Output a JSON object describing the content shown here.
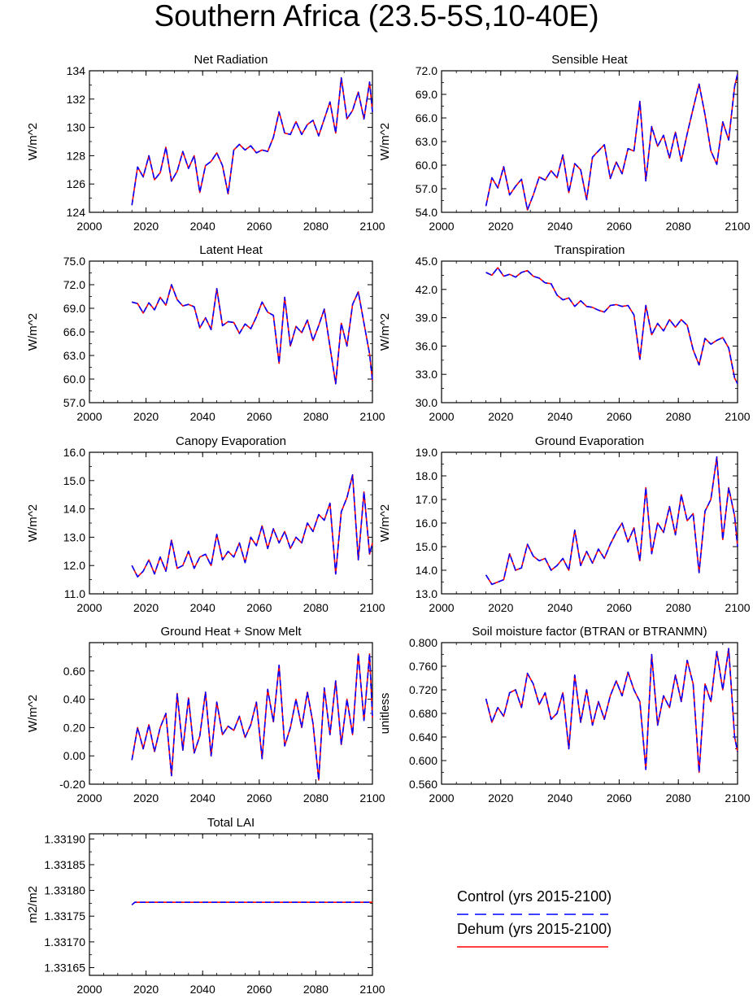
{
  "figure": {
    "title": "Southern Africa (23.5-5S,10-40E)"
  },
  "legend": {
    "placement": "bottom-right",
    "entries": [
      {
        "label": "Control (yrs 2015-2100)",
        "color": "#0000ff",
        "style": "dashed"
      },
      {
        "label": "Dehum (yrs 2015-2100)",
        "color": "#ff0000",
        "style": "solid"
      }
    ]
  },
  "chart_data": [
    {
      "type": "line",
      "title": "Net Radiation",
      "ylabel": "W/m^2",
      "xlim": [
        2000,
        2100
      ],
      "xticks": [
        "2000",
        "2020",
        "2040",
        "2060",
        "2080",
        "2100"
      ],
      "ylim": [
        124,
        134
      ],
      "yticks": [
        "124",
        "126",
        "128",
        "130",
        "132",
        "134"
      ],
      "x": [
        2015,
        2017,
        2019,
        2021,
        2023,
        2025,
        2027,
        2029,
        2031,
        2033,
        2035,
        2037,
        2039,
        2041,
        2043,
        2045,
        2047,
        2049,
        2051,
        2053,
        2055,
        2057,
        2059,
        2061,
        2063,
        2065,
        2067,
        2069,
        2071,
        2073,
        2075,
        2077,
        2079,
        2081,
        2083,
        2085,
        2087,
        2089,
        2091,
        2093,
        2095,
        2097,
        2099,
        2100
      ],
      "values": [
        124.5,
        127.2,
        126.5,
        128.0,
        126.3,
        126.8,
        128.6,
        126.2,
        126.9,
        128.3,
        127.1,
        128.0,
        125.4,
        127.3,
        127.6,
        128.2,
        127.3,
        125.3,
        128.4,
        128.8,
        128.4,
        128.7,
        128.2,
        128.4,
        128.3,
        129.3,
        131.1,
        129.6,
        129.5,
        130.4,
        129.5,
        130.2,
        130.5,
        129.4,
        130.6,
        131.8,
        129.6,
        133.5,
        130.6,
        131.2,
        132.5,
        130.6,
        133.2,
        131.1
      ],
      "series": [
        {
          "name": "Control (yrs 2015-2100)",
          "color": "#0000ff"
        },
        {
          "name": "Dehum (yrs 2015-2100)",
          "color": "#ff0000"
        }
      ]
    },
    {
      "type": "line",
      "title": "Sensible Heat",
      "ylabel": "W/m^2",
      "xlim": [
        2000,
        2100
      ],
      "xticks": [
        "2000",
        "2020",
        "2040",
        "2060",
        "2080",
        "2100"
      ],
      "ylim": [
        54,
        72
      ],
      "yticks": [
        "54.0",
        "57.0",
        "60.0",
        "63.0",
        "66.0",
        "69.0",
        "72.0"
      ],
      "x": [
        2015,
        2017,
        2019,
        2021,
        2023,
        2025,
        2027,
        2029,
        2031,
        2033,
        2035,
        2037,
        2039,
        2041,
        2043,
        2045,
        2047,
        2049,
        2051,
        2053,
        2055,
        2057,
        2059,
        2061,
        2063,
        2065,
        2067,
        2069,
        2071,
        2073,
        2075,
        2077,
        2079,
        2081,
        2083,
        2085,
        2087,
        2089,
        2091,
        2093,
        2095,
        2097,
        2099,
        2100
      ],
      "values": [
        54.8,
        58.4,
        57.1,
        59.8,
        56.2,
        57.3,
        58.2,
        54.3,
        56.2,
        58.5,
        58.1,
        59.3,
        58.4,
        61.3,
        56.5,
        60.2,
        59.4,
        55.6,
        61.0,
        61.8,
        62.6,
        58.3,
        60.4,
        58.9,
        62.1,
        61.8,
        68.1,
        58.0,
        64.9,
        62.4,
        63.8,
        60.9,
        64.2,
        60.5,
        64.0,
        67.2,
        70.3,
        66.4,
        61.8,
        60.1,
        65.5,
        63.2,
        70.0,
        71.6
      ],
      "series": [
        {
          "name": "Control (yrs 2015-2100)",
          "color": "#0000ff"
        },
        {
          "name": "Dehum (yrs 2015-2100)",
          "color": "#ff0000"
        }
      ]
    },
    {
      "type": "line",
      "title": "Latent Heat",
      "ylabel": "W/m^2",
      "xlim": [
        2000,
        2100
      ],
      "xticks": [
        "2000",
        "2020",
        "2040",
        "2060",
        "2080",
        "2100"
      ],
      "ylim": [
        57,
        75
      ],
      "yticks": [
        "57.0",
        "60.0",
        "63.0",
        "66.0",
        "69.0",
        "72.0",
        "75.0"
      ],
      "x": [
        2015,
        2017,
        2019,
        2021,
        2023,
        2025,
        2027,
        2029,
        2031,
        2033,
        2035,
        2037,
        2039,
        2041,
        2043,
        2045,
        2047,
        2049,
        2051,
        2053,
        2055,
        2057,
        2059,
        2061,
        2063,
        2065,
        2067,
        2069,
        2071,
        2073,
        2075,
        2077,
        2079,
        2081,
        2083,
        2085,
        2087,
        2089,
        2091,
        2093,
        2095,
        2097,
        2099,
        2100
      ],
      "values": [
        69.8,
        69.6,
        68.4,
        69.7,
        68.8,
        70.4,
        69.4,
        72.0,
        70.1,
        69.3,
        69.5,
        69.2,
        66.5,
        67.8,
        66.3,
        71.5,
        66.8,
        67.3,
        67.2,
        65.8,
        67.0,
        66.4,
        67.9,
        69.8,
        68.5,
        68.1,
        62.0,
        70.4,
        64.2,
        66.7,
        65.9,
        67.5,
        64.9,
        66.8,
        68.9,
        64.1,
        59.4,
        67.1,
        64.2,
        69.5,
        71.1,
        67.1,
        63.2,
        59.8
      ],
      "series": [
        {
          "name": "Control (yrs 2015-2100)",
          "color": "#0000ff"
        },
        {
          "name": "Dehum (yrs 2015-2100)",
          "color": "#ff0000"
        }
      ]
    },
    {
      "type": "line",
      "title": "Transpiration",
      "ylabel": "W/m^2",
      "xlim": [
        2000,
        2100
      ],
      "xticks": [
        "2000",
        "2020",
        "2040",
        "2060",
        "2080",
        "2100"
      ],
      "ylim": [
        30,
        45
      ],
      "yticks": [
        "30.0",
        "33.0",
        "36.0",
        "39.0",
        "42.0",
        "45.0"
      ],
      "x": [
        2015,
        2017,
        2019,
        2021,
        2023,
        2025,
        2027,
        2029,
        2031,
        2033,
        2035,
        2037,
        2039,
        2041,
        2043,
        2045,
        2047,
        2049,
        2051,
        2053,
        2055,
        2057,
        2059,
        2061,
        2063,
        2065,
        2067,
        2069,
        2071,
        2073,
        2075,
        2077,
        2079,
        2081,
        2083,
        2085,
        2087,
        2089,
        2091,
        2093,
        2095,
        2097,
        2099,
        2100
      ],
      "values": [
        43.8,
        43.5,
        44.3,
        43.4,
        43.6,
        43.3,
        43.8,
        44.0,
        43.4,
        43.2,
        42.7,
        42.6,
        41.4,
        40.9,
        41.1,
        40.2,
        40.8,
        40.2,
        40.1,
        39.8,
        39.6,
        40.3,
        40.4,
        40.2,
        40.3,
        39.3,
        34.6,
        40.3,
        37.2,
        38.4,
        37.6,
        38.8,
        38.0,
        38.8,
        38.2,
        35.6,
        34.0,
        36.8,
        36.2,
        36.6,
        36.9,
        35.8,
        32.6,
        32.0
      ],
      "series": [
        {
          "name": "Control (yrs 2015-2100)",
          "color": "#0000ff"
        },
        {
          "name": "Dehum (yrs 2015-2100)",
          "color": "#ff0000"
        }
      ]
    },
    {
      "type": "line",
      "title": "Canopy Evaporation",
      "ylabel": "W/m^2",
      "xlim": [
        2000,
        2100
      ],
      "xticks": [
        "2000",
        "2020",
        "2040",
        "2060",
        "2080",
        "2100"
      ],
      "ylim": [
        11,
        16
      ],
      "yticks": [
        "11.0",
        "12.0",
        "13.0",
        "14.0",
        "15.0",
        "16.0"
      ],
      "x": [
        2015,
        2017,
        2019,
        2021,
        2023,
        2025,
        2027,
        2029,
        2031,
        2033,
        2035,
        2037,
        2039,
        2041,
        2043,
        2045,
        2047,
        2049,
        2051,
        2053,
        2055,
        2057,
        2059,
        2061,
        2063,
        2065,
        2067,
        2069,
        2071,
        2073,
        2075,
        2077,
        2079,
        2081,
        2083,
        2085,
        2087,
        2089,
        2091,
        2093,
        2095,
        2097,
        2099,
        2100
      ],
      "values": [
        12.0,
        11.6,
        11.8,
        12.2,
        11.7,
        12.3,
        11.8,
        12.9,
        11.9,
        12.0,
        12.5,
        11.9,
        12.3,
        12.4,
        12.0,
        13.1,
        12.2,
        12.5,
        12.3,
        12.8,
        12.1,
        13.0,
        12.7,
        13.4,
        12.6,
        13.3,
        12.8,
        13.2,
        12.6,
        13.0,
        12.8,
        13.5,
        13.2,
        13.8,
        13.6,
        14.2,
        11.7,
        13.9,
        14.4,
        15.2,
        12.2,
        14.6,
        12.4,
        12.8
      ],
      "series": [
        {
          "name": "Control (yrs 2015-2100)",
          "color": "#0000ff"
        },
        {
          "name": "Dehum (yrs 2015-2100)",
          "color": "#ff0000"
        }
      ]
    },
    {
      "type": "line",
      "title": "Ground Evaporation",
      "ylabel": "W/m^2",
      "xlim": [
        2000,
        2100
      ],
      "xticks": [
        "2000",
        "2020",
        "2040",
        "2060",
        "2080",
        "2100"
      ],
      "ylim": [
        13,
        19
      ],
      "yticks": [
        "13.0",
        "14.0",
        "15.0",
        "16.0",
        "17.0",
        "18.0",
        "19.0"
      ],
      "x": [
        2015,
        2017,
        2019,
        2021,
        2023,
        2025,
        2027,
        2029,
        2031,
        2033,
        2035,
        2037,
        2039,
        2041,
        2043,
        2045,
        2047,
        2049,
        2051,
        2053,
        2055,
        2057,
        2059,
        2061,
        2063,
        2065,
        2067,
        2069,
        2071,
        2073,
        2075,
        2077,
        2079,
        2081,
        2083,
        2085,
        2087,
        2089,
        2091,
        2093,
        2095,
        2097,
        2099,
        2100
      ],
      "values": [
        13.8,
        13.4,
        13.5,
        13.6,
        14.7,
        14.0,
        14.1,
        15.1,
        14.6,
        14.4,
        14.5,
        14.0,
        14.2,
        14.5,
        14.0,
        15.7,
        14.2,
        14.8,
        14.3,
        14.9,
        14.5,
        15.1,
        15.6,
        16.0,
        15.2,
        15.8,
        14.4,
        17.5,
        14.7,
        16.0,
        15.6,
        16.7,
        15.5,
        17.2,
        16.1,
        16.4,
        13.9,
        16.5,
        17.0,
        18.8,
        15.3,
        17.5,
        16.3,
        15.0
      ],
      "series": [
        {
          "name": "Control (yrs 2015-2100)",
          "color": "#0000ff"
        },
        {
          "name": "Dehum (yrs 2015-2100)",
          "color": "#ff0000"
        }
      ]
    },
    {
      "type": "line",
      "title": "Ground Heat + Snow Melt",
      "ylabel": "W/m^2",
      "xlim": [
        2000,
        2100
      ],
      "xticks": [
        "2000",
        "2020",
        "2040",
        "2060",
        "2080",
        "2100"
      ],
      "ylim": [
        -0.2,
        0.8
      ],
      "yticks": [
        "-0.20",
        "0.00",
        "0.20",
        "0.40",
        "0.60"
      ],
      "x": [
        2015,
        2017,
        2019,
        2021,
        2023,
        2025,
        2027,
        2029,
        2031,
        2033,
        2035,
        2037,
        2039,
        2041,
        2043,
        2045,
        2047,
        2049,
        2051,
        2053,
        2055,
        2057,
        2059,
        2061,
        2063,
        2065,
        2067,
        2069,
        2071,
        2073,
        2075,
        2077,
        2079,
        2081,
        2083,
        2085,
        2087,
        2089,
        2091,
        2093,
        2095,
        2097,
        2099,
        2100
      ],
      "values": [
        -0.03,
        0.2,
        0.05,
        0.22,
        0.03,
        0.2,
        0.3,
        -0.14,
        0.44,
        0.04,
        0.41,
        0.02,
        0.14,
        0.45,
        0.0,
        0.38,
        0.15,
        0.21,
        0.18,
        0.28,
        0.13,
        0.22,
        0.38,
        -0.02,
        0.47,
        0.24,
        0.64,
        0.07,
        0.2,
        0.4,
        0.2,
        0.45,
        0.23,
        -0.17,
        0.48,
        0.15,
        0.53,
        0.08,
        0.4,
        0.15,
        0.72,
        0.25,
        0.72,
        0.27
      ],
      "series": [
        {
          "name": "Control (yrs 2015-2100)",
          "color": "#0000ff"
        },
        {
          "name": "Dehum (yrs 2015-2100)",
          "color": "#ff0000"
        }
      ]
    },
    {
      "type": "line",
      "title": "Soil moisture factor (BTRAN or BTRANMN)",
      "ylabel": "unitless",
      "xlim": [
        2000,
        2100
      ],
      "xticks": [
        "2000",
        "2020",
        "2040",
        "2060",
        "2080",
        "2100"
      ],
      "ylim": [
        0.56,
        0.8
      ],
      "yticks": [
        "0.560",
        "0.600",
        "0.640",
        "0.680",
        "0.720",
        "0.760",
        "0.800"
      ],
      "x": [
        2015,
        2017,
        2019,
        2021,
        2023,
        2025,
        2027,
        2029,
        2031,
        2033,
        2035,
        2037,
        2039,
        2041,
        2043,
        2045,
        2047,
        2049,
        2051,
        2053,
        2055,
        2057,
        2059,
        2061,
        2063,
        2065,
        2067,
        2069,
        2071,
        2073,
        2075,
        2077,
        2079,
        2081,
        2083,
        2085,
        2087,
        2089,
        2091,
        2093,
        2095,
        2097,
        2099,
        2100
      ],
      "values": [
        0.705,
        0.665,
        0.69,
        0.675,
        0.715,
        0.72,
        0.69,
        0.748,
        0.73,
        0.695,
        0.715,
        0.67,
        0.68,
        0.715,
        0.62,
        0.745,
        0.665,
        0.72,
        0.66,
        0.7,
        0.67,
        0.71,
        0.735,
        0.71,
        0.75,
        0.72,
        0.7,
        0.585,
        0.78,
        0.66,
        0.71,
        0.69,
        0.745,
        0.7,
        0.77,
        0.73,
        0.58,
        0.73,
        0.7,
        0.785,
        0.72,
        0.79,
        0.64,
        0.615
      ],
      "series": [
        {
          "name": "Control (yrs 2015-2100)",
          "color": "#0000ff"
        },
        {
          "name": "Dehum (yrs 2015-2100)",
          "color": "#ff0000"
        }
      ]
    },
    {
      "type": "line",
      "title": "Total LAI",
      "ylabel": "m2/m2",
      "xlim": [
        2000,
        2100
      ],
      "xticks": [
        "2000",
        "2020",
        "2040",
        "2060",
        "2080",
        "2100"
      ],
      "ylim": [
        1.331635,
        1.33191
      ],
      "yticks": [
        "1.33165",
        "1.33170",
        "1.33175",
        "1.33180",
        "1.33185",
        "1.33190"
      ],
      "x": [
        2015,
        2016,
        2020,
        2040,
        2060,
        2080,
        2100
      ],
      "values": [
        1.331772,
        1.331777,
        1.331777,
        1.331777,
        1.331777,
        1.331777,
        1.331777
      ],
      "series": [
        {
          "name": "Control (yrs 2015-2100)",
          "color": "#0000ff"
        },
        {
          "name": "Dehum (yrs 2015-2100)",
          "color": "#ff0000"
        }
      ]
    }
  ]
}
